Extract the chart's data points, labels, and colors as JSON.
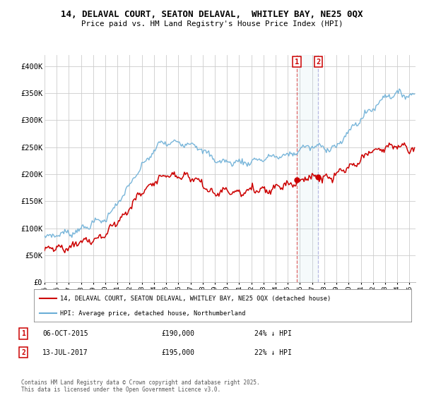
{
  "title": "14, DELAVAL COURT, SEATON DELAVAL,  WHITLEY BAY, NE25 0QX",
  "subtitle": "Price paid vs. HM Land Registry's House Price Index (HPI)",
  "ylim": [
    0,
    420000
  ],
  "yticks": [
    0,
    50000,
    100000,
    150000,
    200000,
    250000,
    300000,
    350000,
    400000
  ],
  "ytick_labels": [
    "£0",
    "£50K",
    "£100K",
    "£150K",
    "£200K",
    "£250K",
    "£300K",
    "£350K",
    "£400K"
  ],
  "hpi_color": "#6aaed6",
  "price_color": "#cc0000",
  "sale1_date": "06-OCT-2015",
  "sale1_price": 190000,
  "sale1_label": "24% ↓ HPI",
  "sale2_date": "13-JUL-2017",
  "sale2_price": 195000,
  "sale2_label": "22% ↓ HPI",
  "legend_label1": "14, DELAVAL COURT, SEATON DELAVAL, WHITLEY BAY, NE25 0QX (detached house)",
  "legend_label2": "HPI: Average price, detached house, Northumberland",
  "footer": "Contains HM Land Registry data © Crown copyright and database right 2025.\nThis data is licensed under the Open Government Licence v3.0.",
  "background_color": "#ffffff",
  "grid_color": "#cccccc"
}
